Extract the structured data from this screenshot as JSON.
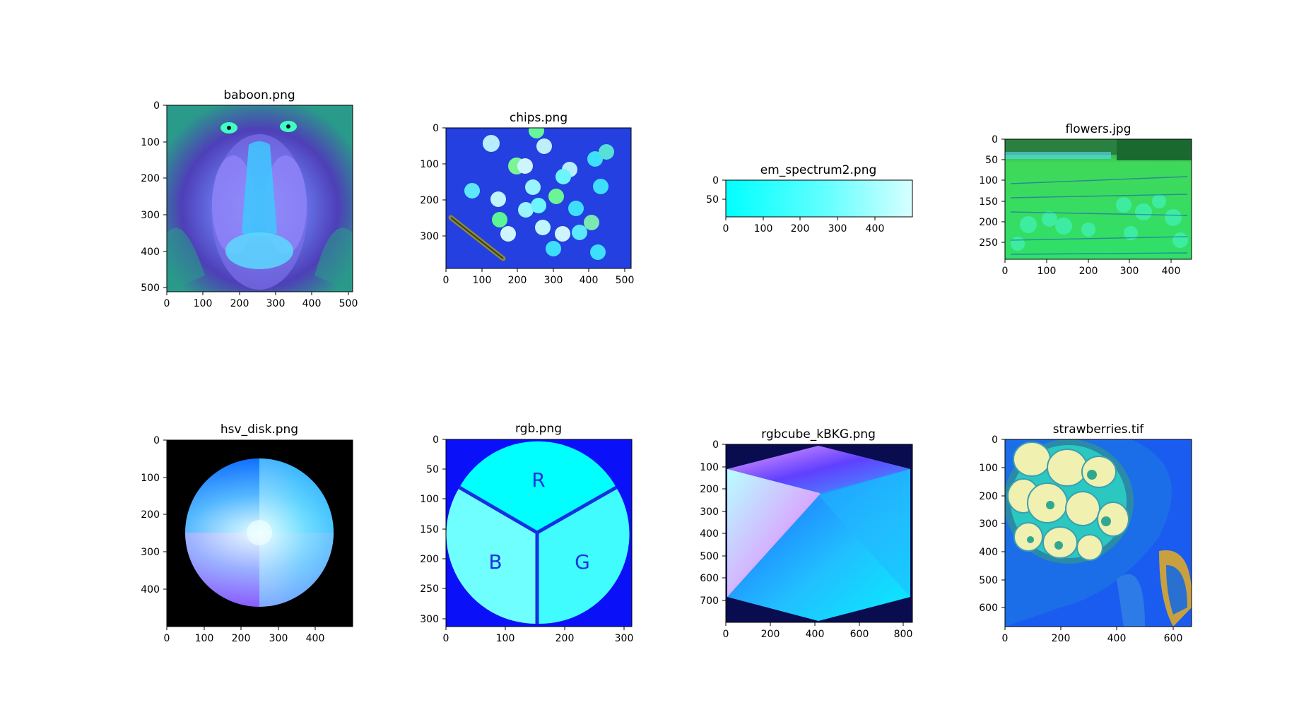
{
  "chart_data": [
    {
      "type": "image",
      "title": "baboon.png",
      "xticks": [
        0,
        100,
        200,
        300,
        400,
        500
      ],
      "yticks": [
        0,
        100,
        200,
        300,
        400,
        500
      ],
      "xlim": [
        0,
        512
      ],
      "ylim": [
        0,
        512
      ]
    },
    {
      "type": "image",
      "title": "chips.png",
      "xticks": [
        0,
        100,
        200,
        300,
        400,
        500
      ],
      "yticks": [
        0,
        100,
        200,
        300
      ],
      "xlim": [
        0,
        518
      ],
      "ylim": [
        0,
        391
      ]
    },
    {
      "type": "image",
      "title": "em_spectrum2.png",
      "xticks": [
        0,
        100,
        200,
        300,
        400
      ],
      "yticks": [
        0,
        50
      ],
      "xlim": [
        0,
        500
      ],
      "ylim": [
        0,
        100
      ]
    },
    {
      "type": "image",
      "title": "flowers.jpg",
      "xticks": [
        0,
        100,
        200,
        300,
        400
      ],
      "yticks": [
        0,
        50,
        100,
        150,
        200,
        250
      ],
      "xlim": [
        0,
        450
      ],
      "ylim": [
        0,
        290
      ]
    },
    {
      "type": "image",
      "title": "hsv_disk.png",
      "xticks": [
        0,
        100,
        200,
        300,
        400
      ],
      "yticks": [
        0,
        100,
        200,
        300,
        400
      ],
      "xlim": [
        0,
        500
      ],
      "ylim": [
        0,
        500
      ]
    },
    {
      "type": "image",
      "title": "rgb.png",
      "xticks": [
        0,
        100,
        200,
        300
      ],
      "yticks": [
        0,
        50,
        100,
        150,
        200,
        250,
        300
      ],
      "xlim": [
        0,
        313
      ],
      "ylim": [
        0,
        313
      ],
      "labels": [
        "R",
        "B",
        "G"
      ]
    },
    {
      "type": "image",
      "title": "rgbcube_kBKG.png",
      "xticks": [
        0,
        200,
        400,
        600,
        800
      ],
      "yticks": [
        0,
        100,
        200,
        300,
        400,
        500,
        600,
        700
      ],
      "xlim": [
        0,
        840
      ],
      "ylim": [
        0,
        800
      ]
    },
    {
      "type": "image",
      "title": "strawberries.tif",
      "xticks": [
        0,
        200,
        400,
        600
      ],
      "yticks": [
        0,
        100,
        200,
        300,
        400,
        500,
        600
      ],
      "xlim": [
        0,
        667
      ],
      "ylim": [
        0,
        667
      ]
    }
  ]
}
